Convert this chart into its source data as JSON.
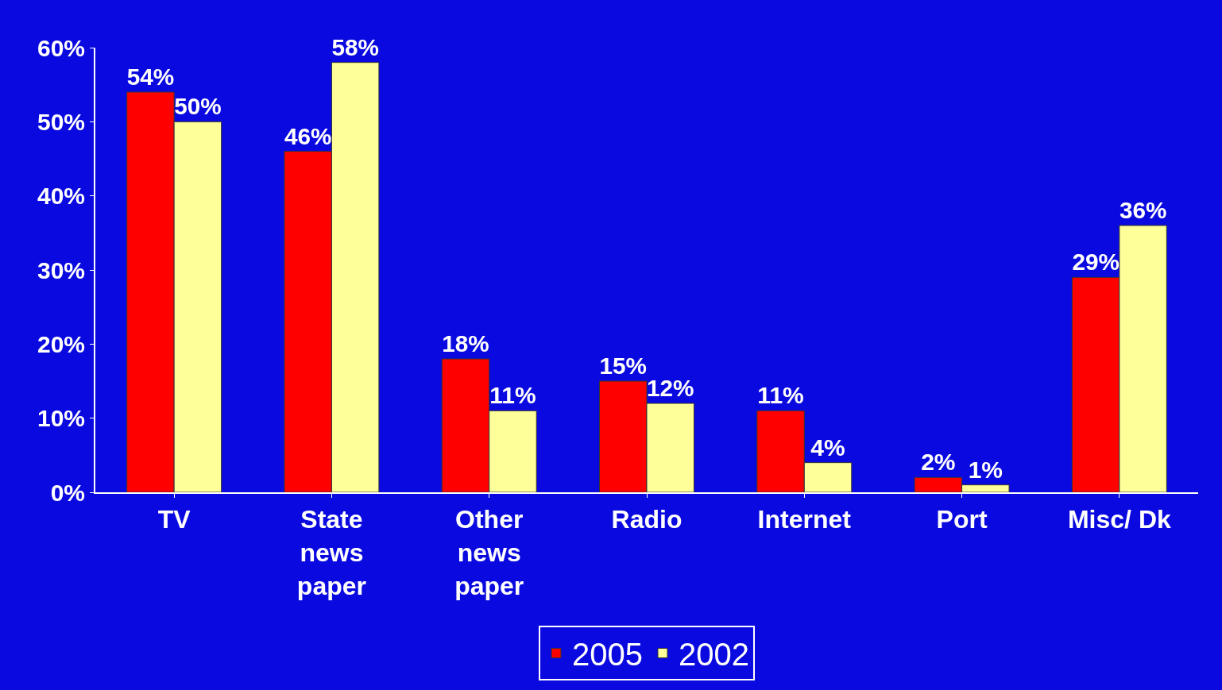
{
  "chart_data": {
    "type": "bar",
    "categories": [
      "TV",
      "State\nnews\npaper",
      "Other\nnews\npaper",
      "Radio",
      "Internet",
      "Port",
      "Misc/ Dk"
    ],
    "series": [
      {
        "name": "2005",
        "color": "#ff0000",
        "values": [
          54,
          46,
          18,
          15,
          11,
          2,
          29
        ],
        "value_labels": [
          "54%",
          "46%",
          "18%",
          "15%",
          "11%",
          "2%",
          "29%"
        ]
      },
      {
        "name": "2002",
        "color": "#ffff99",
        "values": [
          50,
          58,
          11,
          12,
          4,
          1,
          36
        ],
        "value_labels": [
          "50%",
          "58%",
          "11%",
          "12%",
          "4%",
          "1%",
          "36%"
        ]
      }
    ],
    "ylim": [
      0,
      60
    ],
    "yticks": [
      {
        "value": 0,
        "label": "0%"
      },
      {
        "value": 10,
        "label": "10%"
      },
      {
        "value": 20,
        "label": "20%"
      },
      {
        "value": 30,
        "label": "30%"
      },
      {
        "value": 40,
        "label": "40%"
      },
      {
        "value": 50,
        "label": "50%"
      },
      {
        "value": 60,
        "label": "60%"
      }
    ],
    "grid": false,
    "legend": "bottom"
  }
}
